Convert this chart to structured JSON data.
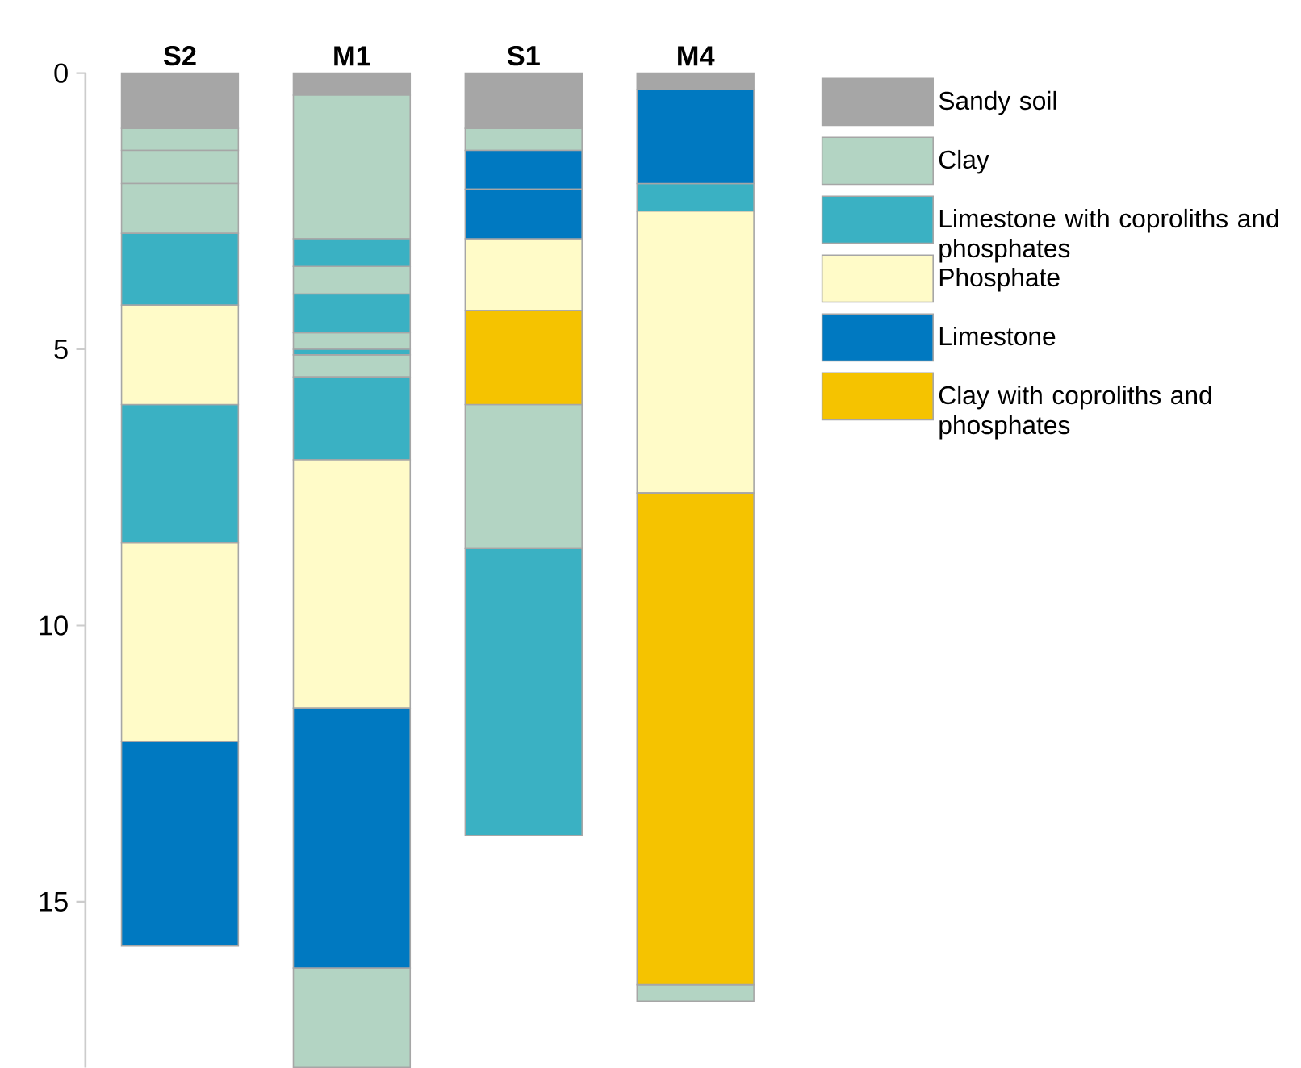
{
  "chart_data": {
    "type": "bar",
    "categories": [
      "S2",
      "M1",
      "S1",
      "M4"
    ],
    "ylim": [
      18,
      0
    ],
    "yticks": [
      0,
      5,
      10,
      15
    ],
    "legend": "right",
    "series": [
      {
        "name": "Sandy soil",
        "color": "#a6a6a6",
        "base": [
          0,
          0,
          0,
          0
        ],
        "values": [
          1.0,
          0.4,
          1.0,
          0.3
        ]
      },
      {
        "name": "Clay",
        "color": "#b3d4c3",
        "base": [
          1.0,
          0.4,
          1.0,
          16.5
        ],
        "values": [
          0.4,
          2.6,
          0.4,
          0.3
        ]
      },
      {
        "color": "#b3d4c3",
        "base": [
          1.4,
          3.5,
          6.0,
          null
        ],
        "values": [
          0.6,
          0.5,
          2.6,
          null
        ]
      },
      {
        "color": "#b3d4c3",
        "base": [
          2.0,
          4.7,
          null,
          null
        ],
        "values": [
          0.9,
          0.3,
          null,
          null
        ]
      },
      {
        "color": "#b3d4c3",
        "base": [
          null,
          5.1,
          null,
          null
        ],
        "values": [
          null,
          0.4,
          null,
          null
        ]
      },
      {
        "color": "#b3d4c3",
        "base": [
          null,
          16.2,
          null,
          null
        ],
        "values": [
          null,
          1.8,
          null,
          null
        ]
      },
      {
        "name": "Limestone with coproliths and phosphates",
        "color": "#3ab1c3",
        "base": [
          2.9,
          3.0,
          8.6,
          2.0
        ],
        "values": [
          1.3,
          0.5,
          5.2,
          0.5
        ]
      },
      {
        "color": "#3ab1c3",
        "base": [
          6.0,
          4.0,
          null,
          null
        ],
        "values": [
          2.5,
          0.7,
          null,
          null
        ]
      },
      {
        "color": "#3ab1c3",
        "base": [
          null,
          5.0,
          null,
          null
        ],
        "values": [
          null,
          0.1,
          null,
          null
        ]
      },
      {
        "color": "#3ab1c3",
        "base": [
          null,
          5.5,
          null,
          null
        ],
        "values": [
          null,
          1.5,
          null,
          null
        ]
      },
      {
        "name": "Phosphate",
        "color": "#fffbc8",
        "base": [
          4.2,
          7.0,
          3.0,
          2.5
        ],
        "values": [
          1.8,
          4.5,
          1.3,
          5.1
        ]
      },
      {
        "color": "#fffbc8",
        "base": [
          8.5,
          null,
          null,
          null
        ],
        "values": [
          3.6,
          null,
          null,
          null
        ]
      },
      {
        "name": "Limestone",
        "color": "#0079c1",
        "base": [
          12.1,
          11.5,
          1.4,
          0.3
        ],
        "values": [
          3.7,
          4.7,
          0.7,
          1.7
        ]
      },
      {
        "color": "#0079c1",
        "base": [
          null,
          null,
          2.1,
          null
        ],
        "values": [
          null,
          null,
          0.9,
          null
        ]
      },
      {
        "name": "Clay with coproliths and phosphates",
        "color": "#f5c300",
        "base": [
          null,
          null,
          4.3,
          7.6
        ],
        "values": [
          null,
          null,
          1.7,
          8.9
        ]
      }
    ]
  }
}
